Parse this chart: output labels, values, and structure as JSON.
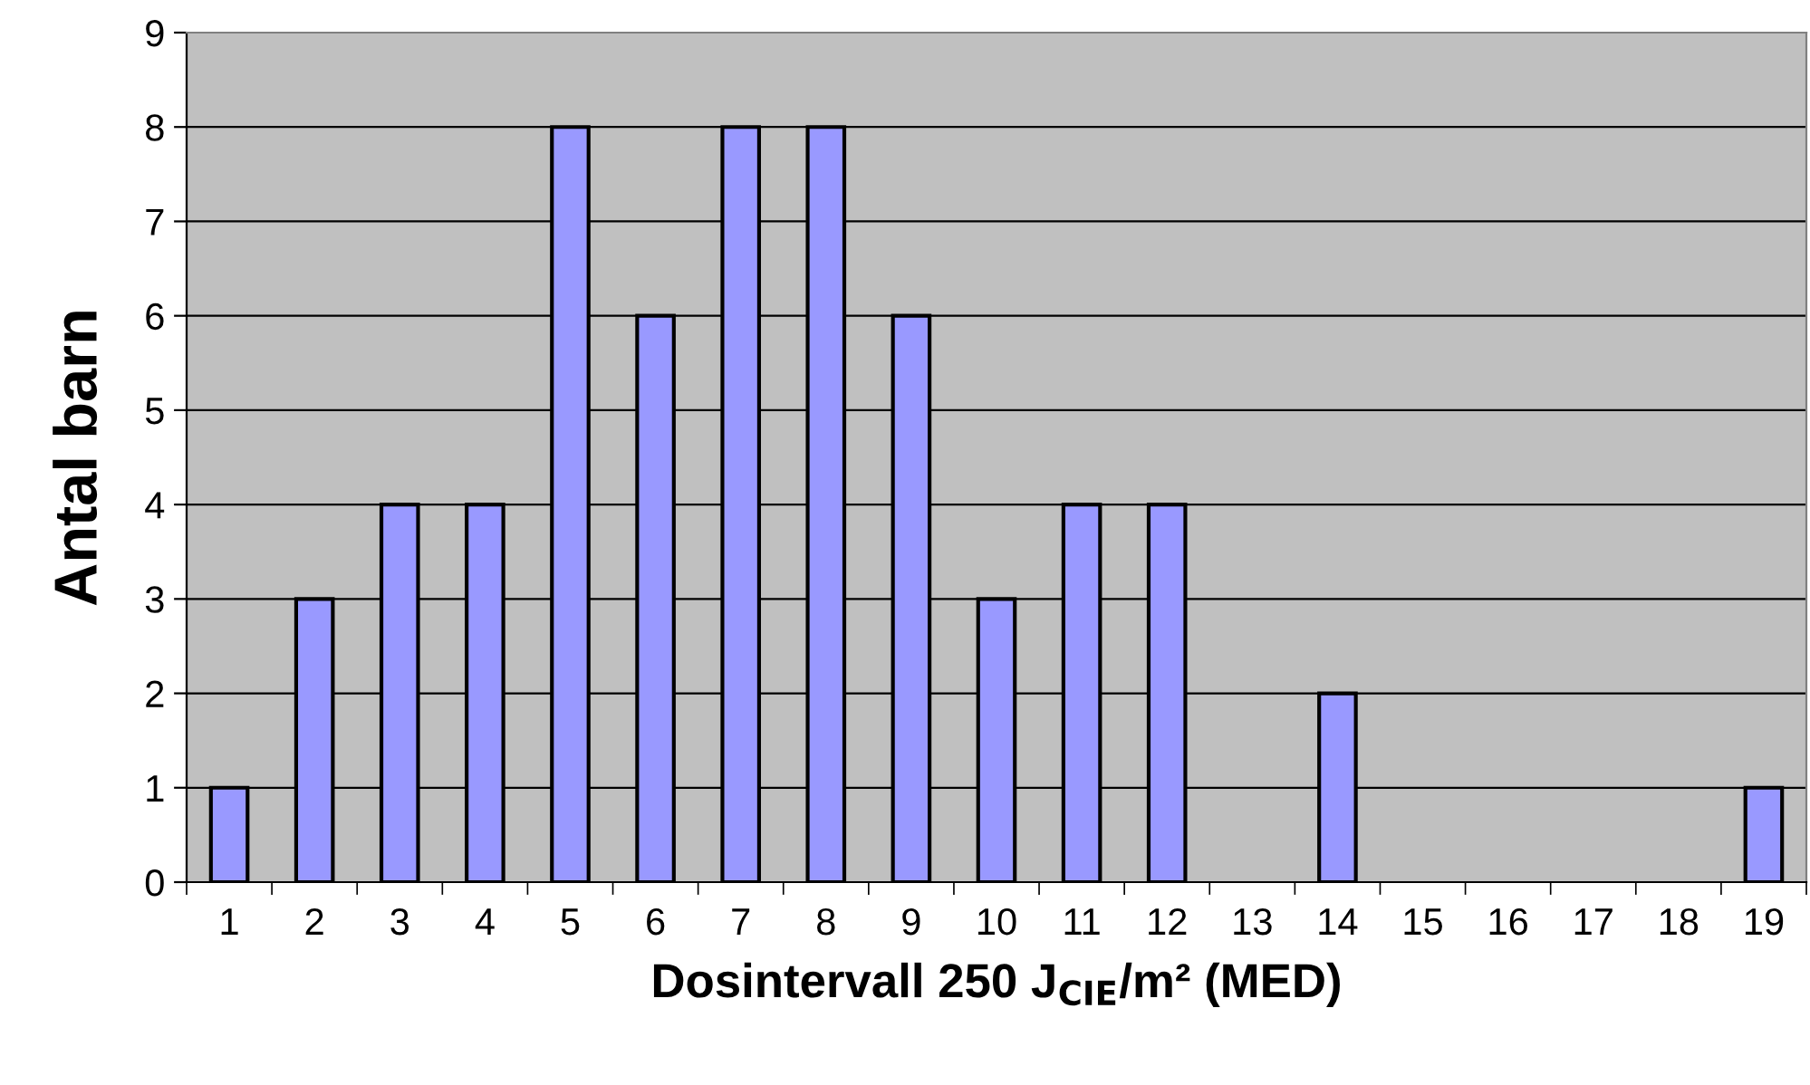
{
  "chart_data": {
    "type": "bar",
    "xlabel": "Dosintervall 250 J$_{CIE}$/m² (MED)",
    "ylabel": "Antal barn",
    "categories": [
      "1",
      "2",
      "3",
      "4",
      "5",
      "6",
      "7",
      "8",
      "9",
      "10",
      "11",
      "12",
      "13",
      "14",
      "15",
      "16",
      "17",
      "18",
      "19"
    ],
    "values": [
      1,
      3,
      4,
      4,
      8,
      6,
      8,
      8,
      6,
      3,
      4,
      4,
      0,
      2,
      0,
      0,
      0,
      0,
      1
    ],
    "color": "#9999ff",
    "ylim": [
      0,
      9
    ],
    "yticks": [
      0,
      1,
      2,
      3,
      4,
      5,
      6,
      7,
      8,
      9
    ],
    "grid": "y",
    "legend": false
  }
}
